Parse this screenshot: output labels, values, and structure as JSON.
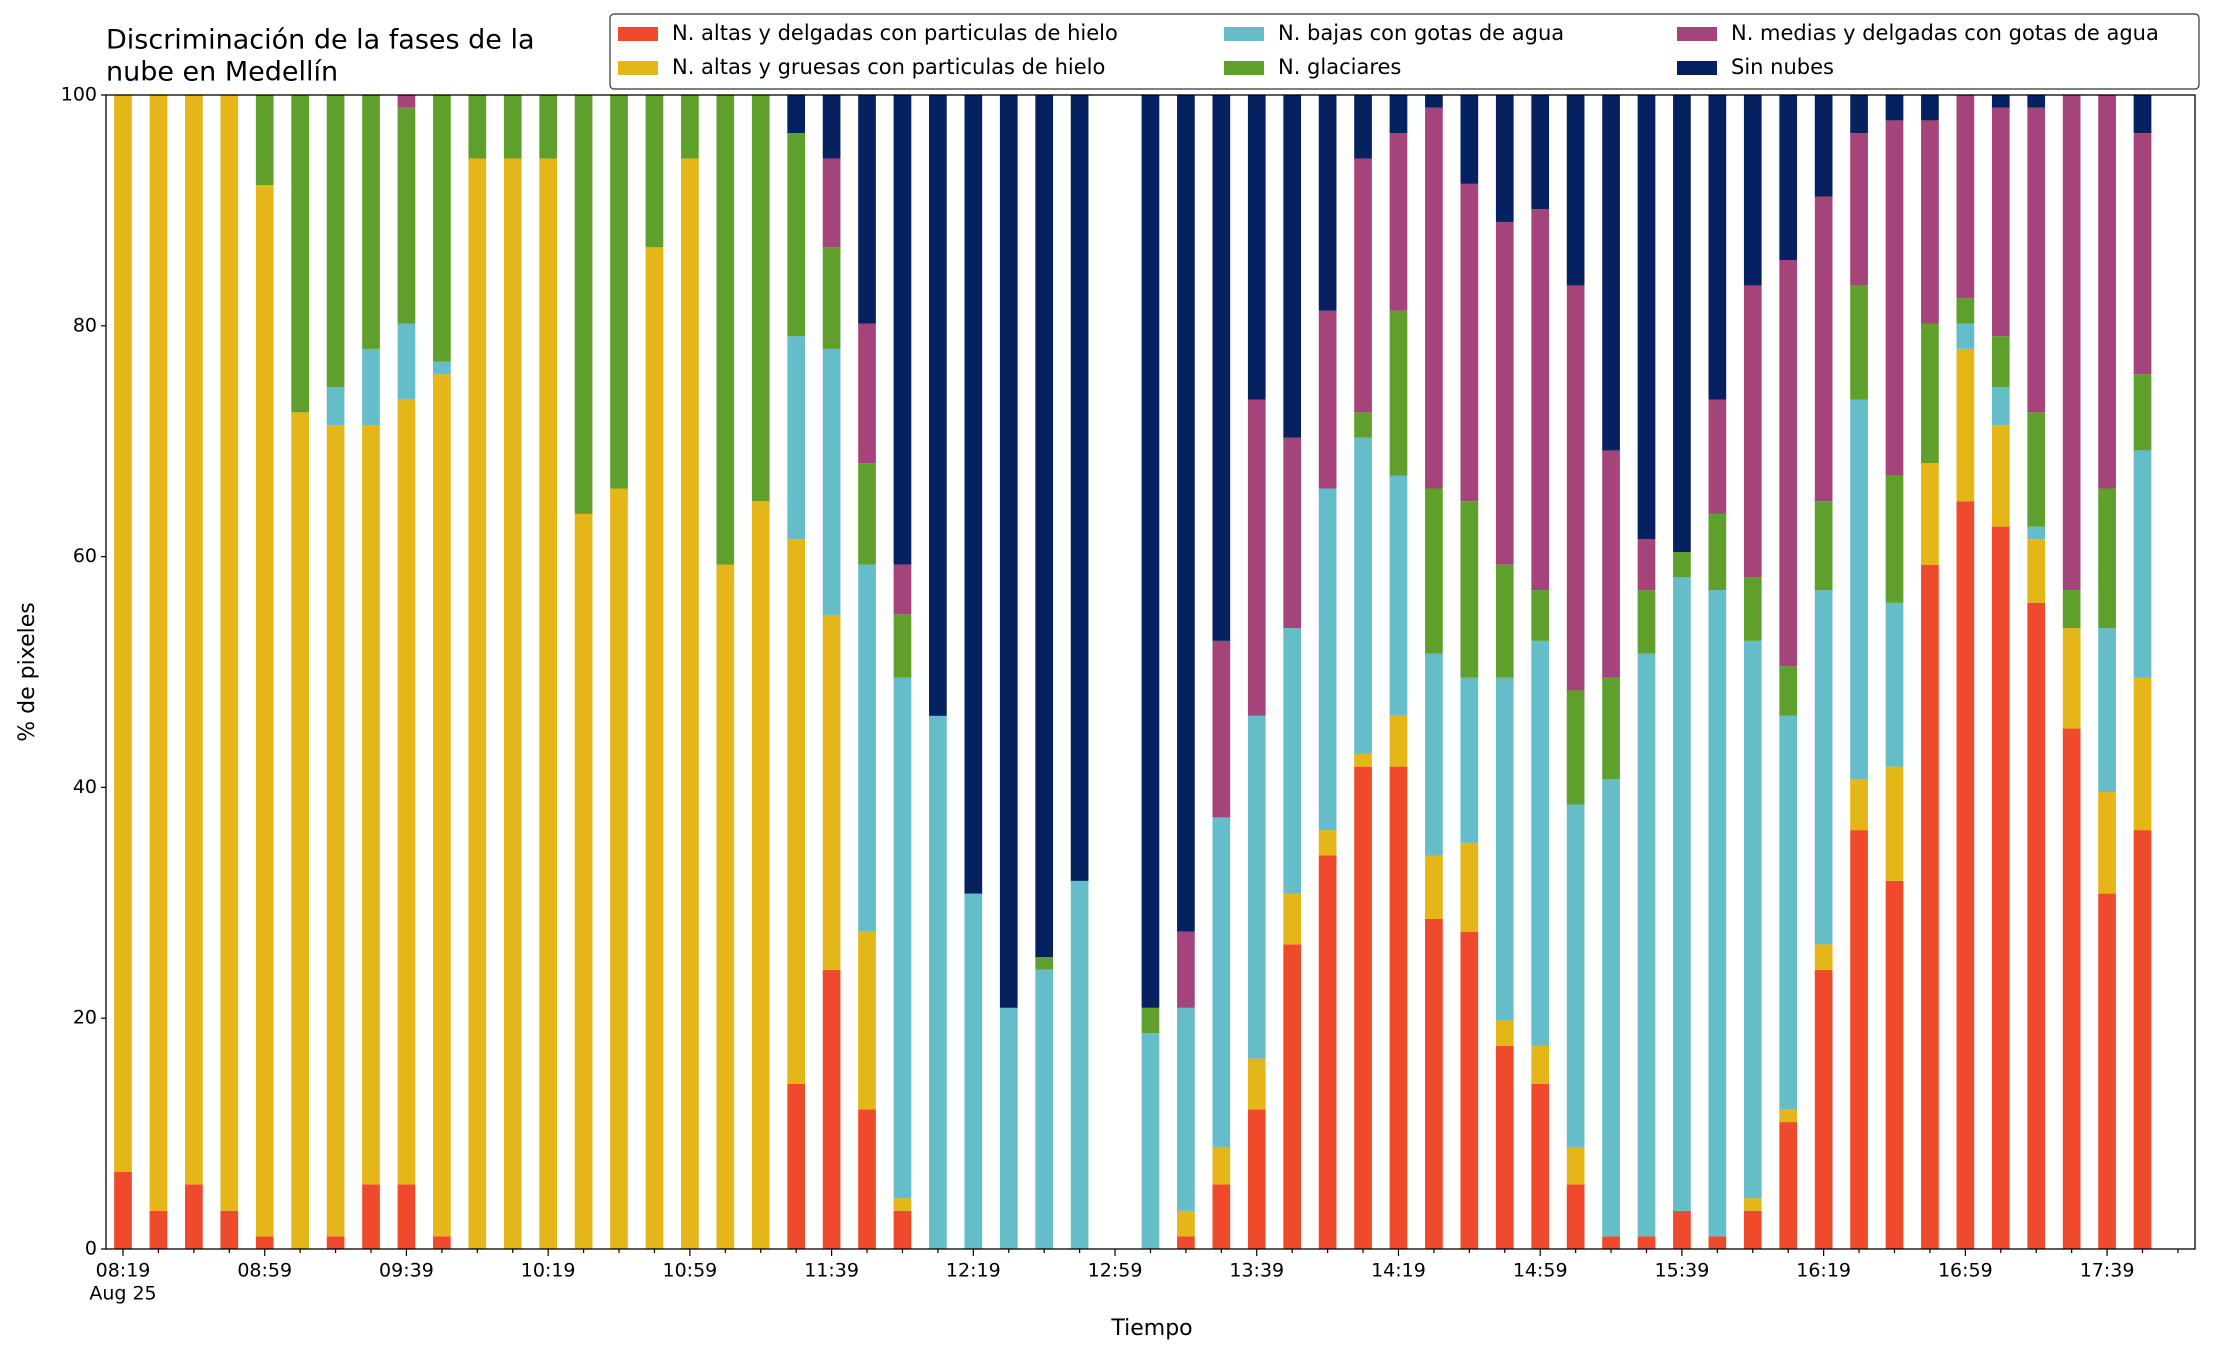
{
  "chart_data": {
    "type": "stacked_bar",
    "title": [
      "Discriminación de la fases de la",
      "nube en Medellín"
    ],
    "xlabel": "Tiempo",
    "ylabel": "% de pixeles",
    "x": [
      "08:19",
      null,
      null,
      null,
      "08:59",
      null,
      null,
      null,
      "09:39",
      null,
      null,
      null,
      "10:19",
      null,
      null,
      null,
      "10:59",
      null,
      null,
      null,
      "11:39",
      null,
      null,
      null,
      "12:19",
      null,
      null,
      null,
      "12:59",
      null,
      null,
      null,
      "13:39",
      null,
      null,
      null,
      "14:19",
      null,
      null,
      null,
      "14:59",
      null,
      null,
      null,
      "15:39",
      null,
      null,
      null,
      "16:19",
      null,
      null,
      null,
      "16:59",
      null,
      null,
      null,
      "17:39",
      null
    ],
    "x_sublabel": "Aug 25",
    "ylim": [
      0,
      100
    ],
    "yticks": [
      0,
      20,
      40,
      60,
      80,
      100
    ],
    "grid": false,
    "legend": "upper right",
    "legend_columns": 3,
    "series": [
      {
        "name": "N. altas y delgadas con particulas de hielo",
        "color": "#ee4a2b",
        "values": [
          6.7,
          3.3,
          5.6,
          3.3,
          1.1,
          0,
          1.1,
          5.6,
          5.6,
          1.1,
          0,
          0,
          0,
          0,
          0,
          0,
          0,
          0,
          0,
          14.3,
          24.2,
          12.1,
          3.3,
          0,
          0,
          0,
          0,
          0,
          null,
          0,
          1.1,
          5.6,
          12.1,
          26.4,
          34.1,
          41.8,
          41.8,
          28.6,
          27.5,
          17.6,
          14.3,
          5.6,
          1.1,
          1.1,
          3.3,
          1.1,
          3.3,
          11,
          24.2,
          36.3,
          31.9,
          59.3,
          64.8,
          62.6,
          56,
          45.1,
          30.8,
          36.3
        ]
      },
      {
        "name": "N. altas y gruesas con particulas de hielo",
        "color": "#e5b618",
        "values": [
          93.3,
          96.7,
          94.4,
          96.7,
          91.1,
          72.5,
          70.3,
          65.8,
          68,
          74.7,
          94.5,
          94.5,
          94.5,
          63.7,
          65.9,
          86.8,
          94.5,
          59.3,
          64.8,
          47.2,
          30.7,
          15.4,
          1.1,
          0,
          0,
          0,
          0,
          0,
          null,
          0,
          2.2,
          3.2,
          4.4,
          4.4,
          2.2,
          1.1,
          4.4,
          5.5,
          7.7,
          2.2,
          3.3,
          3.2,
          0,
          0,
          0,
          0,
          1.1,
          1.1,
          2.2,
          4.4,
          9.9,
          8.8,
          13.2,
          8.8,
          5.5,
          8.7,
          8.8,
          13.2
        ]
      },
      {
        "name": "N. bajas con gotas de agua",
        "color": "#65bdca",
        "values": [
          0,
          0,
          0,
          0,
          0,
          0,
          3.3,
          6.6,
          6.6,
          1.1,
          0,
          0,
          0,
          0,
          0,
          0,
          0,
          0,
          0,
          17.6,
          23.1,
          31.8,
          45.1,
          46.2,
          30.8,
          20.9,
          24.2,
          31.9,
          null,
          18.7,
          17.6,
          28.6,
          29.7,
          23,
          29.6,
          27.4,
          20.8,
          17.5,
          14.3,
          29.7,
          35.1,
          29.7,
          39.6,
          50.5,
          54.9,
          56,
          48.3,
          34.1,
          30.7,
          32.9,
          14.2,
          0,
          2.2,
          3.3,
          1.1,
          0,
          14.2,
          19.7
        ]
      },
      {
        "name": "N. glaciares",
        "color": "#5f9f2c",
        "values": [
          0,
          0,
          0,
          0,
          7.8,
          27.5,
          25.3,
          22,
          18.7,
          23.1,
          5.5,
          5.5,
          5.5,
          36.3,
          34.1,
          13.2,
          5.5,
          40.7,
          35.2,
          17.6,
          8.8,
          8.8,
          5.5,
          0,
          0,
          0,
          1.1,
          0,
          null,
          2.2,
          0,
          0,
          0,
          0,
          0,
          2.2,
          14.3,
          14.3,
          15.3,
          9.8,
          4.4,
          9.9,
          8.8,
          5.5,
          2.2,
          6.6,
          5.5,
          4.3,
          7.7,
          9.9,
          11,
          12.1,
          2.2,
          4.4,
          9.9,
          3.3,
          12.1,
          6.6
        ]
      },
      {
        "name": "N. medias y delgadas con gotas de agua",
        "color": "#a4447a",
        "values": [
          0,
          0,
          0,
          0,
          0,
          0,
          0,
          0,
          1.1,
          0,
          0,
          0,
          0,
          0,
          0,
          0,
          0,
          0,
          0,
          0,
          7.7,
          12.1,
          4.3,
          0,
          0,
          0,
          0,
          0,
          null,
          0,
          6.6,
          15.3,
          27.4,
          16.5,
          15.4,
          22,
          15.4,
          33,
          27.5,
          29.7,
          33,
          35.1,
          19.7,
          4.4,
          0,
          9.9,
          25.3,
          35.2,
          26.4,
          13.2,
          30.8,
          17.6,
          17.6,
          19.8,
          26.4,
          42.9,
          34.1,
          20.9
        ]
      },
      {
        "name": "Sin nubes",
        "color": "#06215f",
        "values": [
          0,
          0,
          0,
          0,
          0,
          0,
          0,
          0,
          0,
          0,
          0,
          0,
          0,
          0,
          0,
          0,
          0,
          0,
          0,
          3.3,
          5.5,
          19.8,
          40.7,
          53.8,
          69.2,
          79.1,
          74.7,
          68.1,
          null,
          79.1,
          72.5,
          47.3,
          26.4,
          29.7,
          18.7,
          5.5,
          3.3,
          1.1,
          7.7,
          11,
          9.9,
          16.5,
          30.8,
          38.5,
          39.6,
          26.4,
          16.5,
          14.3,
          8.8,
          3.3,
          2.2,
          2.2,
          0,
          1.1,
          1.1,
          0,
          0,
          3.3
        ]
      }
    ]
  }
}
